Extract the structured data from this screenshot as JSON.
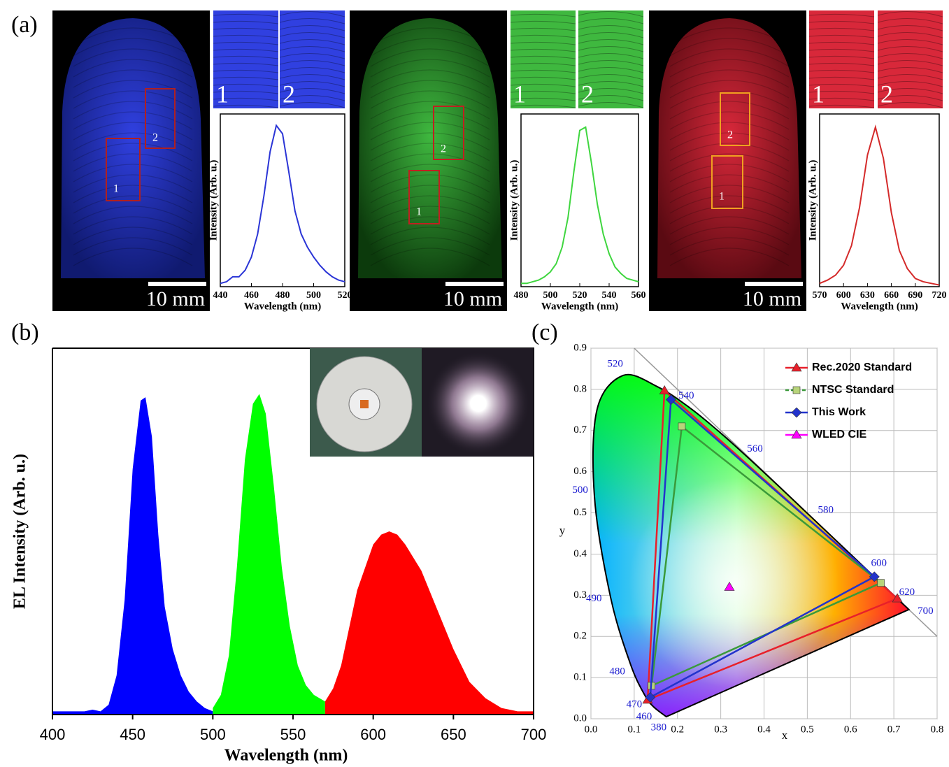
{
  "panel_labels": [
    "(a)",
    "(b)",
    "(c)"
  ],
  "photo_text": {
    "region_1": "1",
    "region_2": "2",
    "scale_bar": "10 mm"
  },
  "chart_data": [
    {
      "type": "line",
      "xlabel": "Wavelength (nm)",
      "ylabel": "Intensity (Arb. u.)",
      "color": "#2b35d6",
      "x": [
        440,
        444,
        448,
        452,
        456,
        460,
        464,
        468,
        472,
        476,
        480,
        484,
        488,
        492,
        496,
        500,
        504,
        508,
        512,
        516,
        520
      ],
      "values": [
        0.02,
        0.03,
        0.06,
        0.06,
        0.1,
        0.18,
        0.32,
        0.55,
        0.82,
        0.98,
        0.93,
        0.7,
        0.46,
        0.32,
        0.24,
        0.18,
        0.13,
        0.09,
        0.06,
        0.04,
        0.03
      ],
      "xlim": [
        440,
        520
      ],
      "xticks": [
        440,
        460,
        480,
        500,
        520
      ],
      "ylim": [
        0,
        1.05
      ]
    },
    {
      "type": "line",
      "xlabel": "Wavelength (nm)",
      "ylabel": "Intensity (Arb. u.)",
      "color": "#3fd63f",
      "x": [
        480,
        484,
        488,
        492,
        496,
        500,
        504,
        508,
        512,
        516,
        520,
        524,
        528,
        532,
        536,
        540,
        544,
        548,
        552,
        556,
        560
      ],
      "values": [
        0.02,
        0.02,
        0.03,
        0.04,
        0.06,
        0.09,
        0.14,
        0.24,
        0.42,
        0.7,
        0.95,
        0.97,
        0.75,
        0.5,
        0.32,
        0.2,
        0.12,
        0.08,
        0.05,
        0.04,
        0.03
      ],
      "xlim": [
        480,
        560
      ],
      "xticks": [
        480,
        500,
        520,
        540,
        560
      ],
      "ylim": [
        0,
        1.05
      ]
    },
    {
      "type": "line",
      "xlabel": "Wavelength (nm)",
      "ylabel": "Intensity (Arb. u.)",
      "color": "#d42a2a",
      "x": [
        570,
        580,
        590,
        600,
        610,
        620,
        630,
        640,
        650,
        660,
        670,
        680,
        690,
        700,
        710,
        720
      ],
      "values": [
        0.02,
        0.04,
        0.07,
        0.13,
        0.25,
        0.48,
        0.8,
        0.97,
        0.78,
        0.45,
        0.22,
        0.11,
        0.05,
        0.03,
        0.02,
        0.01
      ],
      "xlim": [
        570,
        720
      ],
      "xticks": [
        570,
        600,
        630,
        660,
        690,
        720
      ],
      "ylim": [
        0,
        1.05
      ]
    },
    {
      "type": "area",
      "xlabel": "Wavelength (nm)",
      "ylabel": "EL Intensity (Arb. u.)",
      "xlim": [
        400,
        700
      ],
      "xticks": [
        400,
        450,
        500,
        550,
        600,
        650,
        700
      ],
      "ylim": [
        0,
        1.12
      ],
      "series": [
        {
          "color": "#0000ff",
          "x": [
            400,
            420,
            425,
            430,
            435,
            440,
            445,
            450,
            455,
            458,
            462,
            466,
            470,
            475,
            480,
            485,
            490,
            495,
            500
          ],
          "values": [
            0.01,
            0.01,
            0.015,
            0.01,
            0.03,
            0.12,
            0.35,
            0.75,
            0.96,
            0.97,
            0.85,
            0.55,
            0.33,
            0.2,
            0.12,
            0.07,
            0.04,
            0.02,
            0.01
          ]
        },
        {
          "color": "#00ff00",
          "x": [
            500,
            505,
            510,
            515,
            520,
            525,
            529,
            533,
            538,
            543,
            548,
            553,
            558,
            563,
            570
          ],
          "values": [
            0.02,
            0.06,
            0.18,
            0.45,
            0.78,
            0.95,
            0.98,
            0.92,
            0.7,
            0.45,
            0.27,
            0.15,
            0.09,
            0.06,
            0.04
          ]
        },
        {
          "color": "#ff0000",
          "x": [
            570,
            575,
            580,
            590,
            600,
            605,
            610,
            615,
            620,
            630,
            640,
            650,
            660,
            670,
            680,
            690,
            700
          ],
          "values": [
            0.04,
            0.08,
            0.15,
            0.38,
            0.52,
            0.55,
            0.56,
            0.55,
            0.52,
            0.44,
            0.32,
            0.2,
            0.1,
            0.05,
            0.02,
            0.01,
            0.01
          ]
        }
      ]
    },
    {
      "type": "cie",
      "xlabel": "x",
      "ylabel": "y",
      "grid": true,
      "legend": "upper right",
      "xlim": [
        0,
        0.8
      ],
      "ylim": [
        0,
        0.9
      ],
      "xticks": [
        {
          "value": 0,
          "label": "0.0"
        },
        0.1,
        0.2,
        0.3,
        0.4,
        0.5,
        0.6,
        0.7,
        0.8
      ],
      "yticks": [
        {
          "value": 0,
          "label": "0.0"
        },
        0.1,
        0.2,
        0.3,
        0.4,
        0.5,
        0.6,
        0.7,
        0.8,
        0.9
      ],
      "locus": {
        "wavelengths": [
          380,
          460,
          470,
          480,
          490,
          500,
          null,
          520,
          null,
          540,
          null,
          560,
          null,
          580,
          null,
          600,
          620,
          700
        ],
        "x": [
          0.1741,
          0.144,
          0.1241,
          0.0913,
          0.0454,
          0.0082,
          0.0139,
          0.0743,
          0.1547,
          0.2296,
          0.3016,
          0.3731,
          0.4441,
          0.5125,
          0.5752,
          0.627,
          0.6915,
          0.7347
        ],
        "y": [
          0.005,
          0.0297,
          0.0578,
          0.1327,
          0.295,
          0.5384,
          0.7502,
          0.8338,
          0.8059,
          0.7543,
          0.6923,
          0.6245,
          0.5547,
          0.4866,
          0.4242,
          0.3725,
          0.3083,
          0.2653
        ]
      },
      "series": [
        {
          "name": "Rec.2020 Standard",
          "color": "#e8202a",
          "marker": "triangle",
          "x": [
            0.708,
            0.17,
            0.131
          ],
          "values": [
            0.292,
            0.797,
            0.046
          ]
        },
        {
          "name": "NTSC Standard",
          "color": "#3a9a3a",
          "marker": "square",
          "x": [
            0.67,
            0.21,
            0.14
          ],
          "values": [
            0.33,
            0.71,
            0.08
          ]
        },
        {
          "name": "This Work",
          "color": "#2233cc",
          "marker": "diamond",
          "x": [
            0.655,
            0.185,
            0.137
          ],
          "values": [
            0.345,
            0.775,
            0.052
          ]
        },
        {
          "name": "WLED CIE",
          "color": "#ff00ff",
          "marker": "triangle",
          "x": [
            0.32
          ],
          "values": [
            0.32
          ]
        }
      ]
    }
  ]
}
